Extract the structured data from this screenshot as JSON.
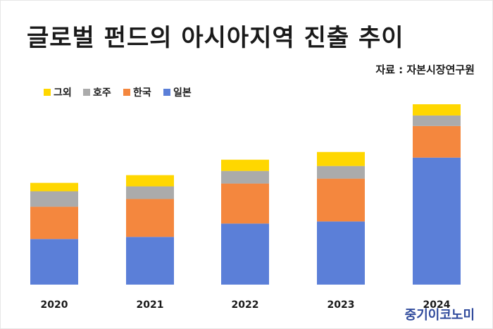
{
  "title": "글로벌 펀드의 아시아지역 진출 추이",
  "source": "자료 : 자본시장연구원",
  "brand": "중기이코노미",
  "chart_data": {
    "type": "bar",
    "stacked": true,
    "categories": [
      "2020",
      "2021",
      "2022",
      "2023",
      "2024"
    ],
    "series": [
      {
        "name": "그외",
        "color": "#FFD700",
        "values": [
          12,
          16,
          16,
          20,
          16
        ]
      },
      {
        "name": "호주",
        "color": "#ABABAB",
        "values": [
          22,
          18,
          18,
          18,
          15
        ]
      },
      {
        "name": "한국",
        "color": "#F4873E",
        "values": [
          46,
          54,
          57,
          61,
          45
        ]
      },
      {
        "name": "일본",
        "color": "#5B7FD8",
        "values": [
          65,
          68,
          87,
          90,
          181
        ]
      }
    ],
    "legend_order": [
      "그외",
      "호주",
      "한국",
      "일본"
    ],
    "legend_position": "top-left",
    "ylim": [
      0,
      260
    ],
    "grid": false,
    "xlabel": "",
    "ylabel": ""
  }
}
